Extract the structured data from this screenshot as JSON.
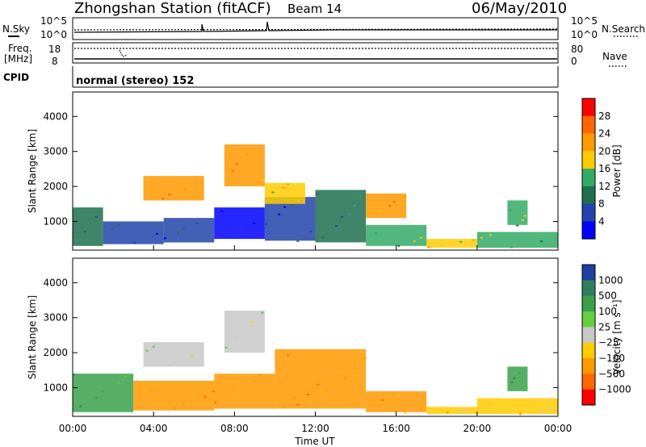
{
  "header": {
    "title": "Zhongshan Station (fitACF)",
    "beam": "Beam 14",
    "date": "06/May/2010"
  },
  "status_panels": {
    "nsky_label": "N.Sky",
    "nsearch_label": "N.Search",
    "freq_label": "Freq.",
    "freq_unit": "[MHz]",
    "nave_label": "Nave",
    "cpid_label": "CPID",
    "cpid_value": "normal (stereo) 152",
    "noise_ticks_left": [
      "10^5",
      "10^0"
    ],
    "noise_ticks_right": [
      "10^5",
      "10^0"
    ],
    "freq_ticks": [
      "18",
      "8"
    ],
    "nave_ticks": [
      "80",
      "0"
    ]
  },
  "chart_data": [
    {
      "type": "heatmap",
      "name": "power",
      "ylabel": "Slant Range [km]",
      "yticks": [
        1000,
        2000,
        3000,
        4000
      ],
      "ylim": [
        180,
        4700
      ],
      "xlim": [
        0,
        24
      ],
      "colorbar_label": "Power [dB]",
      "colorbar_ticks": [
        "28",
        "24",
        "20",
        "16",
        "12",
        "8",
        "4"
      ],
      "colorbar_colors": [
        "#ff0000",
        "#ff6600",
        "#ff9900",
        "#ffcc00",
        "#33aa66",
        "#1f6f4f",
        "#2244aa",
        "#0000ff"
      ],
      "regions": [
        {
          "t0": 0.0,
          "t1": 1.5,
          "r0": 300,
          "r1": 1400,
          "level": 5
        },
        {
          "t0": 1.5,
          "t1": 4.5,
          "r0": 350,
          "r1": 1000,
          "level": 6
        },
        {
          "t0": 4.5,
          "t1": 7.0,
          "r0": 400,
          "r1": 1100,
          "level": 6
        },
        {
          "t0": 7.0,
          "t1": 9.5,
          "r0": 500,
          "r1": 1400,
          "level": 7
        },
        {
          "t0": 9.5,
          "t1": 12.0,
          "r0": 450,
          "r1": 1700,
          "level": 6
        },
        {
          "t0": 12.0,
          "t1": 14.5,
          "r0": 400,
          "r1": 1900,
          "level": 5
        },
        {
          "t0": 14.5,
          "t1": 17.5,
          "r0": 300,
          "r1": 900,
          "level": 4
        },
        {
          "t0": 17.5,
          "t1": 20.0,
          "r0": 250,
          "r1": 500,
          "level": 3
        },
        {
          "t0": 20.0,
          "t1": 24.0,
          "r0": 250,
          "r1": 700,
          "level": 4
        },
        {
          "t0": 7.5,
          "t1": 9.5,
          "r0": 2000,
          "r1": 3200,
          "level": 2
        },
        {
          "t0": 3.5,
          "t1": 6.5,
          "r0": 1600,
          "r1": 2300,
          "level": 2
        },
        {
          "t0": 9.5,
          "t1": 11.5,
          "r0": 1500,
          "r1": 2100,
          "level": 3
        },
        {
          "t0": 14.5,
          "t1": 16.5,
          "r0": 1100,
          "r1": 1800,
          "level": 2
        },
        {
          "t0": 21.5,
          "t1": 22.5,
          "r0": 900,
          "r1": 1600,
          "level": 4
        }
      ]
    },
    {
      "type": "heatmap",
      "name": "velocity",
      "ylabel": "Slant Range [km]",
      "yticks": [
        1000,
        2000,
        3000,
        4000
      ],
      "ylim": [
        180,
        4700
      ],
      "xlim": [
        0,
        24
      ],
      "xlabel": "Time UT",
      "xticks": [
        "00:00",
        "04:00",
        "08:00",
        "12:00",
        "16:00",
        "20:00",
        "00:00"
      ],
      "colorbar_label": "Velocity [m s⁻¹]",
      "colorbar_ticks": [
        "1000",
        "500",
        "100",
        "25",
        "−25",
        "−100",
        "−500",
        "−1000"
      ],
      "colorbar_colors": [
        "#2040a0",
        "#2f7f5f",
        "#3aa04a",
        "#66cc44",
        "#c8c8c8",
        "#ffcc00",
        "#ff9900",
        "#ff6600",
        "#ff0000"
      ],
      "regions": [
        {
          "t0": 0.0,
          "t1": 3.0,
          "r0": 300,
          "r1": 1400,
          "level": 2
        },
        {
          "t0": 3.0,
          "t1": 7.0,
          "r0": 350,
          "r1": 1200,
          "level": 6
        },
        {
          "t0": 7.0,
          "t1": 10.0,
          "r0": 400,
          "r1": 1400,
          "level": 6
        },
        {
          "t0": 10.0,
          "t1": 14.5,
          "r0": 400,
          "r1": 2100,
          "level": 6
        },
        {
          "t0": 14.5,
          "t1": 17.5,
          "r0": 300,
          "r1": 900,
          "level": 6
        },
        {
          "t0": 17.5,
          "t1": 20.0,
          "r0": 250,
          "r1": 450,
          "level": 5
        },
        {
          "t0": 20.0,
          "t1": 24.0,
          "r0": 250,
          "r1": 700,
          "level": 5
        },
        {
          "t0": 7.5,
          "t1": 9.5,
          "r0": 2000,
          "r1": 3200,
          "level": 4
        },
        {
          "t0": 3.5,
          "t1": 6.5,
          "r0": 1600,
          "r1": 2300,
          "level": 4
        },
        {
          "t0": 21.5,
          "t1": 22.5,
          "r0": 900,
          "r1": 1600,
          "level": 2
        }
      ]
    }
  ]
}
